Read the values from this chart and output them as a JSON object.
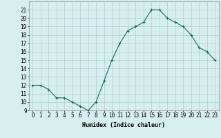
{
  "x": [
    0,
    1,
    2,
    3,
    4,
    5,
    6,
    7,
    8,
    9,
    10,
    11,
    12,
    13,
    14,
    15,
    16,
    17,
    18,
    19,
    20,
    21,
    22,
    23
  ],
  "y": [
    12,
    12,
    11.5,
    10.5,
    10.5,
    10,
    9.5,
    9,
    10,
    12.5,
    15,
    17,
    18.5,
    19,
    19.5,
    21,
    21,
    20,
    19.5,
    19,
    18,
    16.5,
    16,
    15
  ],
  "xlabel": "Humidex (Indice chaleur)",
  "xlim": [
    -0.5,
    23.5
  ],
  "ylim": [
    9,
    22
  ],
  "yticks": [
    9,
    10,
    11,
    12,
    13,
    14,
    15,
    16,
    17,
    18,
    19,
    20,
    21
  ],
  "xticks": [
    0,
    1,
    2,
    3,
    4,
    5,
    6,
    7,
    8,
    9,
    10,
    11,
    12,
    13,
    14,
    15,
    16,
    17,
    18,
    19,
    20,
    21,
    22,
    23
  ],
  "line_color": "#1a6b5a",
  "marker": "+",
  "bg_color": "#d6eeee",
  "grid_color": "#b0cfcf",
  "label_fontsize": 6,
  "tick_fontsize": 5.5
}
